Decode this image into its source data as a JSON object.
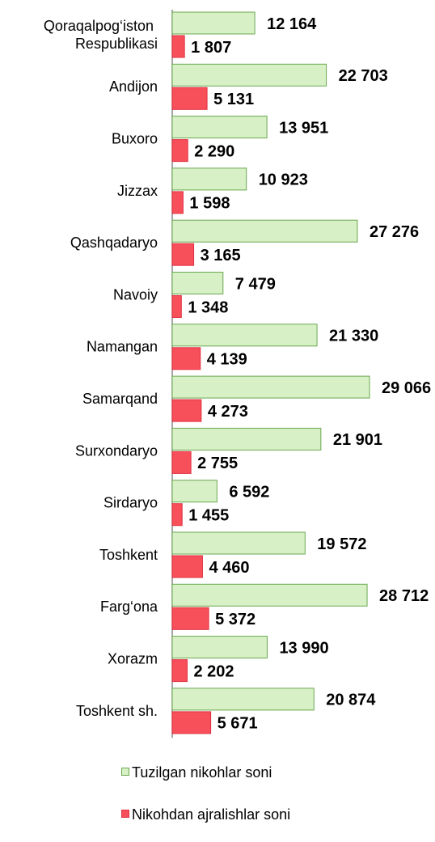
{
  "chart_data": {
    "type": "bar",
    "orientation": "horizontal",
    "categories": [
      "Qoraqalpog‘iston Respublikasi",
      "Andijon",
      "Buxoro",
      "Jizzax",
      "Qashqadaryo",
      "Navoiy",
      "Namangan",
      "Samarqand",
      "Surxondaryo",
      "Sirdaryo",
      "Toshkent",
      "Farg‘ona",
      "Xorazm",
      "Toshkent sh."
    ],
    "series": [
      {
        "name": "Tuzilgan nikohlar soni",
        "color": "#d7f0c6",
        "edge": "#6aa84f",
        "values": [
          12164,
          22703,
          13951,
          10923,
          27276,
          7479,
          21330,
          29066,
          21901,
          6592,
          19572,
          28712,
          13990,
          20874
        ],
        "value_labels": [
          "12 164",
          "22 703",
          "13 951",
          "10 923",
          "27 276",
          "7 479",
          "21 330",
          "29 066",
          "21 901",
          "6 592",
          "19 572",
          "28 712",
          "13 990",
          "20 874"
        ]
      },
      {
        "name": "Nikohdan ajralishlar soni",
        "color": "#f8505a",
        "edge": "#e03040",
        "values": [
          1807,
          5131,
          2290,
          1598,
          3165,
          1348,
          4139,
          4273,
          2755,
          1455,
          4460,
          5372,
          2202,
          5671
        ],
        "value_labels": [
          "1 807",
          "5 131",
          "2 290",
          "1 598",
          "3 165",
          "1 348",
          "4 139",
          "4 273",
          "2 755",
          "1 455",
          "4 460",
          "5 372",
          "2 202",
          "5 671"
        ]
      }
    ],
    "legend": "bottom"
  }
}
